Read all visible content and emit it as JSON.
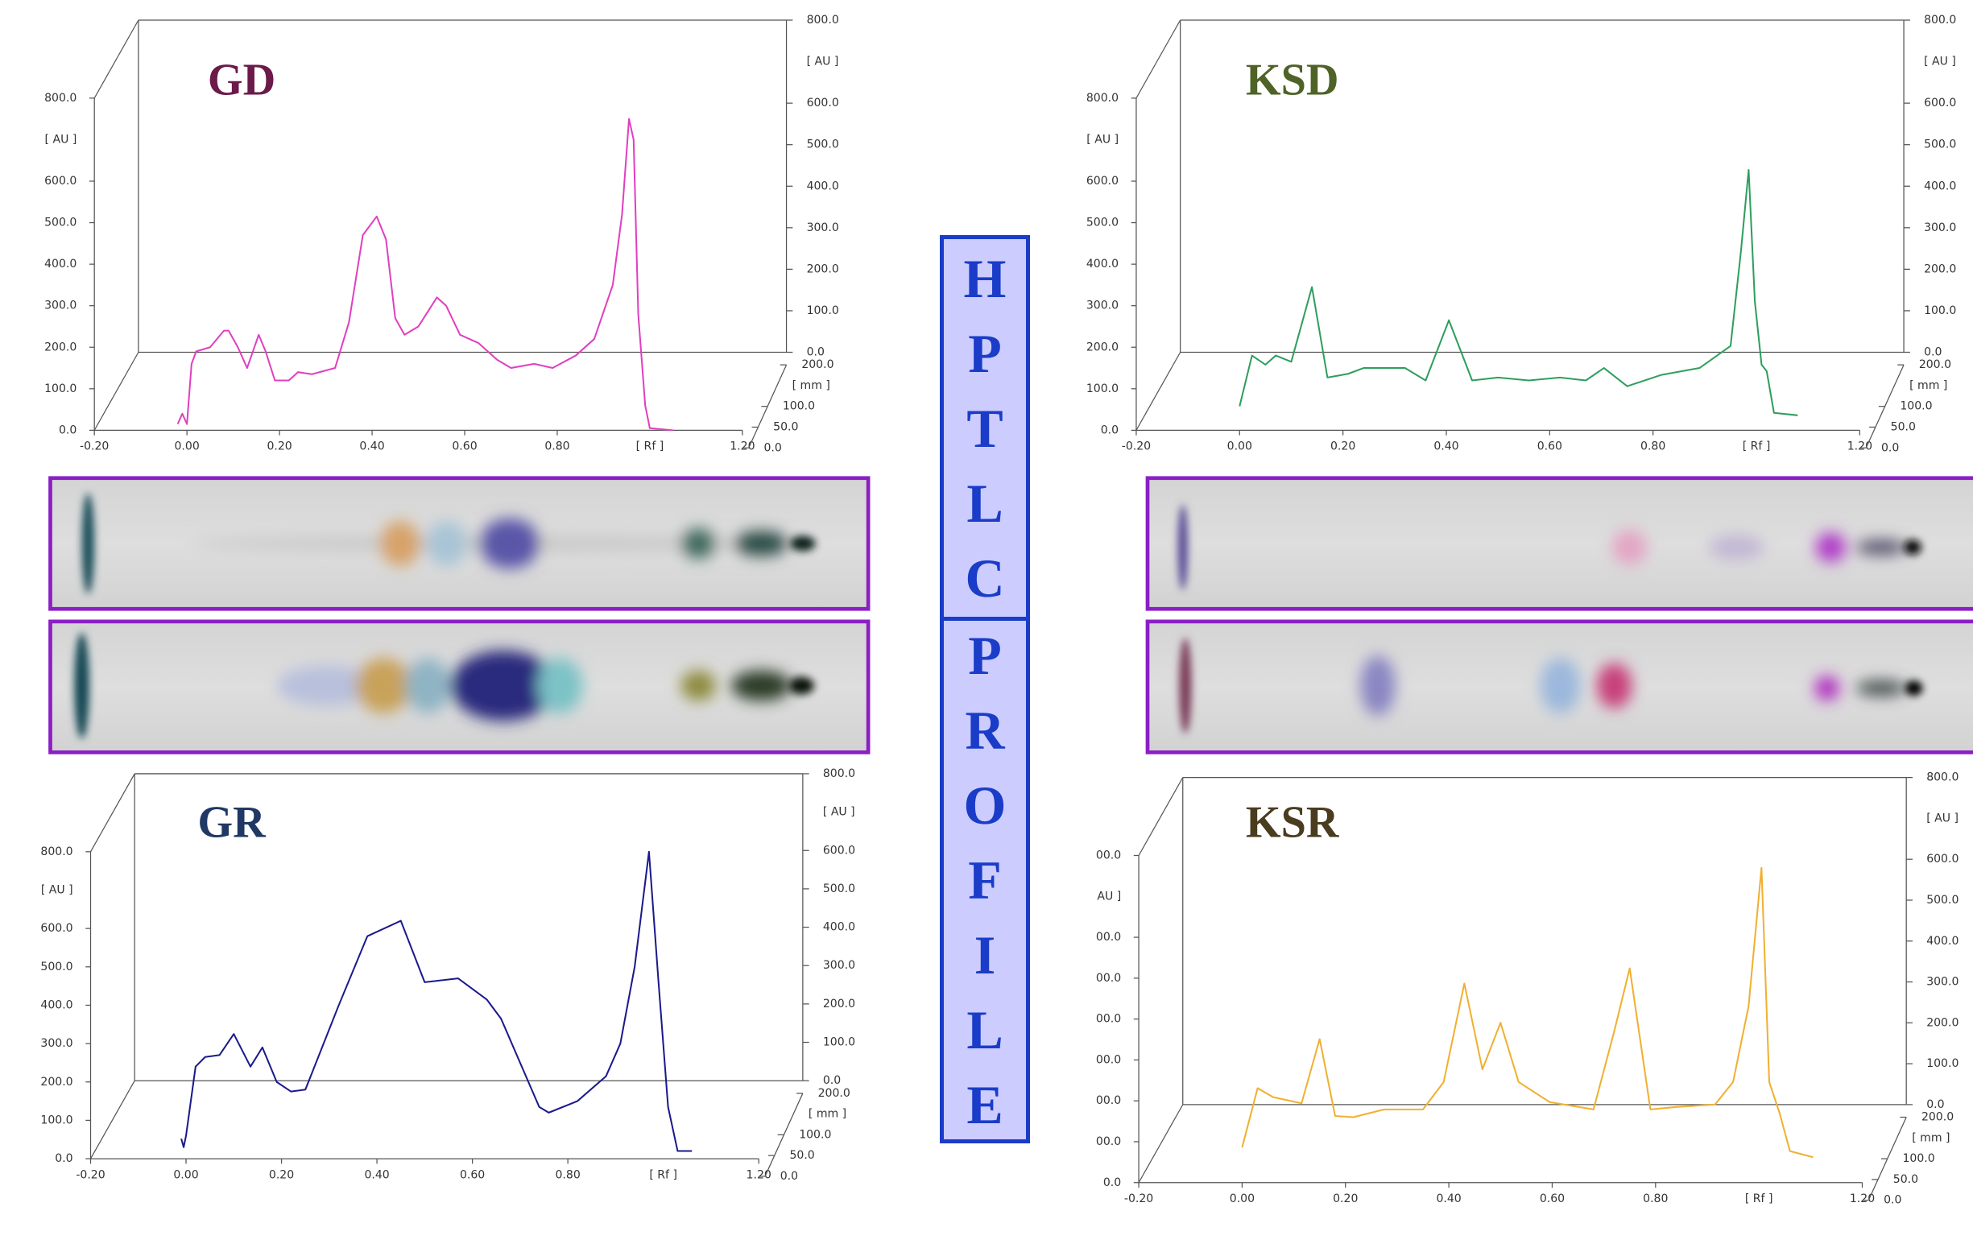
{
  "center_label": [
    "HPTLC",
    "PROFILE"
  ],
  "chart_data": [
    {
      "type": "line",
      "title": "GD",
      "title_color": "#6b1a4a",
      "color": "#e040c0",
      "x_label": "[ Rf ]",
      "y_label": "[ AU ]",
      "y2_label": "[ AU ]",
      "z_label": "[ mm ]",
      "x": [
        -0.02,
        -0.01,
        0.0,
        0.01,
        0.02,
        0.05,
        0.08,
        0.09,
        0.11,
        0.13,
        0.155,
        0.17,
        0.19,
        0.22,
        0.24,
        0.27,
        0.32,
        0.35,
        0.38,
        0.41,
        0.43,
        0.45,
        0.47,
        0.5,
        0.54,
        0.56,
        0.59,
        0.63,
        0.67,
        0.7,
        0.75,
        0.79,
        0.84,
        0.88,
        0.92,
        0.94,
        0.955,
        0.965,
        0.975,
        0.99,
        1.0,
        1.05
      ],
      "values": [
        15,
        40,
        15,
        160,
        190,
        200,
        240,
        240,
        200,
        150,
        230,
        190,
        120,
        120,
        140,
        135,
        150,
        260,
        470,
        515,
        460,
        270,
        230,
        250,
        320,
        300,
        230,
        210,
        170,
        150,
        160,
        150,
        180,
        220,
        350,
        520,
        750,
        700,
        280,
        60,
        5,
        0
      ],
      "xlim": [
        -0.2,
        1.2
      ],
      "xticks": [
        {
          "value": -0.2,
          "label": "-0.20"
        },
        {
          "value": 0,
          "label": "0.00"
        },
        {
          "value": 0.2,
          "label": "0.20"
        },
        {
          "value": 0.4,
          "label": "0.40"
        },
        {
          "value": 0.6,
          "label": "0.60"
        },
        {
          "value": 0.8,
          "label": "0.80"
        },
        {
          "value": 1.2,
          "label": "1.20"
        }
      ],
      "ylim": [
        0,
        800
      ],
      "yticks": [
        {
          "value": 0,
          "label": "0.0"
        },
        {
          "value": 100,
          "label": "100.0"
        },
        {
          "value": 200,
          "label": "200.0"
        },
        {
          "value": 300,
          "label": "300.0"
        },
        {
          "value": 400,
          "label": "400.0"
        },
        {
          "value": 500,
          "label": "500.0"
        },
        {
          "value": 600,
          "label": "600.0"
        },
        {
          "value": 800,
          "label": "800.0"
        }
      ],
      "y2lim": [
        0,
        800
      ],
      "y2ticks": [
        {
          "value": 0,
          "label": "0.0"
        },
        {
          "value": 100,
          "label": "100.0"
        },
        {
          "value": 200,
          "label": "200.0"
        },
        {
          "value": 300,
          "label": "300.0"
        },
        {
          "value": 400,
          "label": "400.0"
        },
        {
          "value": 500,
          "label": "500.0"
        },
        {
          "value": 600,
          "label": "600.0"
        },
        {
          "value": 800,
          "label": "800.0"
        }
      ],
      "zlim": [
        0,
        200
      ],
      "zticks": [
        {
          "value": 0,
          "label": "0.0"
        },
        {
          "value": 50,
          "label": "50.0"
        },
        {
          "value": 100,
          "label": "100.0"
        },
        {
          "value": 200,
          "label": "200.0"
        }
      ]
    },
    {
      "type": "line",
      "title": "GR",
      "title_color": "#1f3864",
      "color": "#1a1a8c",
      "x_label": "[ Rf ]",
      "y_label": "[ AU ]",
      "y2_label": "[ AU ]",
      "z_label": "[ mm ]",
      "x": [
        -0.01,
        -0.005,
        0.0,
        0.02,
        0.04,
        0.07,
        0.1,
        0.135,
        0.16,
        0.19,
        0.22,
        0.25,
        0.32,
        0.38,
        0.45,
        0.5,
        0.57,
        0.63,
        0.66,
        0.74,
        0.76,
        0.82,
        0.88,
        0.91,
        0.94,
        0.97,
        0.99,
        1.01,
        1.03,
        1.06
      ],
      "values": [
        52,
        30,
        60,
        240,
        265,
        270,
        325,
        240,
        290,
        200,
        175,
        180,
        400,
        580,
        620,
        460,
        470,
        415,
        365,
        135,
        120,
        150,
        215,
        300,
        500,
        800,
        460,
        135,
        20,
        20
      ],
      "xlim": [
        -0.2,
        1.2
      ],
      "xticks": [
        {
          "value": -0.2,
          "label": "-0.20"
        },
        {
          "value": 0,
          "label": "0.00"
        },
        {
          "value": 0.2,
          "label": "0.20"
        },
        {
          "value": 0.4,
          "label": "0.40"
        },
        {
          "value": 0.6,
          "label": "0.60"
        },
        {
          "value": 0.8,
          "label": "0.80"
        },
        {
          "value": 1.2,
          "label": "1.20"
        }
      ],
      "ylim": [
        0,
        800
      ],
      "yticks": [
        {
          "value": 0,
          "label": "0.0"
        },
        {
          "value": 100,
          "label": "100.0"
        },
        {
          "value": 200,
          "label": "200.0"
        },
        {
          "value": 300,
          "label": "300.0"
        },
        {
          "value": 400,
          "label": "400.0"
        },
        {
          "value": 500,
          "label": "500.0"
        },
        {
          "value": 600,
          "label": "600.0"
        },
        {
          "value": 800,
          "label": "800.0"
        }
      ],
      "y2lim": [
        0,
        800
      ],
      "y2ticks": [
        {
          "value": 0,
          "label": "0.0"
        },
        {
          "value": 100,
          "label": "100.0"
        },
        {
          "value": 200,
          "label": "200.0"
        },
        {
          "value": 300,
          "label": "300.0"
        },
        {
          "value": 400,
          "label": "400.0"
        },
        {
          "value": 500,
          "label": "500.0"
        },
        {
          "value": 600,
          "label": "600.0"
        },
        {
          "value": 800,
          "label": "800.0"
        }
      ],
      "zlim": [
        0,
        200
      ],
      "zticks": [
        {
          "value": 0,
          "label": "0.0"
        },
        {
          "value": 50,
          "label": "50.0"
        },
        {
          "value": 100,
          "label": "100.0"
        },
        {
          "value": 200,
          "label": "200.0"
        }
      ]
    },
    {
      "type": "line",
      "title": "KSD",
      "title_color": "#4f6228",
      "color": "#2e9e5e",
      "x_label": "[ Rf ]",
      "y_label": "[ AU ]",
      "y2_label": "[ AU ]",
      "z_label": "[ mm ]",
      "x": [
        0.0,
        0.024,
        0.05,
        0.07,
        0.1,
        0.14,
        0.17,
        0.21,
        0.24,
        0.28,
        0.32,
        0.36,
        0.405,
        0.45,
        0.5,
        0.56,
        0.62,
        0.67,
        0.705,
        0.75,
        0.815,
        0.89,
        0.95,
        0.97,
        0.985,
        0.997,
        1.01,
        1.02,
        1.034,
        1.08
      ],
      "values": [
        58,
        180,
        158,
        180,
        165,
        345,
        127,
        136,
        150,
        150,
        150,
        120,
        265,
        120,
        127,
        120,
        127,
        120,
        150,
        106,
        133,
        150,
        203,
        430,
        627,
        310,
        158,
        142,
        42,
        36
      ],
      "xlim": [
        -0.2,
        1.2
      ],
      "xticks": [
        {
          "value": -0.2,
          "label": "-0.20"
        },
        {
          "value": 0,
          "label": "0.00"
        },
        {
          "value": 0.2,
          "label": "0.20"
        },
        {
          "value": 0.4,
          "label": "0.40"
        },
        {
          "value": 0.6,
          "label": "0.60"
        },
        {
          "value": 0.8,
          "label": "0.80"
        },
        {
          "value": 1.2,
          "label": "1.20"
        }
      ],
      "ylim": [
        0,
        800
      ],
      "yticks": [
        {
          "value": 0,
          "label": "0.0"
        },
        {
          "value": 100,
          "label": "100.0"
        },
        {
          "value": 200,
          "label": "200.0"
        },
        {
          "value": 300,
          "label": "300.0"
        },
        {
          "value": 400,
          "label": "400.0"
        },
        {
          "value": 500,
          "label": "500.0"
        },
        {
          "value": 600,
          "label": "600.0"
        },
        {
          "value": 800,
          "label": "800.0"
        }
      ],
      "y2lim": [
        0,
        800
      ],
      "y2ticks": [
        {
          "value": 0,
          "label": "0.0"
        },
        {
          "value": 100,
          "label": "100.0"
        },
        {
          "value": 200,
          "label": "200.0"
        },
        {
          "value": 300,
          "label": "300.0"
        },
        {
          "value": 400,
          "label": "400.0"
        },
        {
          "value": 500,
          "label": "500.0"
        },
        {
          "value": 600,
          "label": "600.0"
        },
        {
          "value": 800,
          "label": "800.0"
        }
      ],
      "zlim": [
        0,
        200
      ],
      "zticks": [
        {
          "value": 0,
          "label": "0.0"
        },
        {
          "value": 50,
          "label": "50.0"
        },
        {
          "value": 100,
          "label": "100.0"
        },
        {
          "value": 200,
          "label": "200.0"
        }
      ]
    },
    {
      "type": "line",
      "title": "KSR",
      "title_color": "#4a3c1e",
      "color": "#f0b030",
      "x_label": "[ Rf ]",
      "y_label": "AU ]",
      "y2_label": "[ AU ]",
      "z_label": "[ mm ]",
      "x": [
        0.0,
        0.03,
        0.06,
        0.115,
        0.15,
        0.18,
        0.215,
        0.275,
        0.35,
        0.39,
        0.43,
        0.465,
        0.5,
        0.535,
        0.595,
        0.68,
        0.72,
        0.75,
        0.79,
        0.84,
        0.915,
        0.95,
        0.98,
        1.005,
        1.02,
        1.04,
        1.06,
        1.105
      ],
      "values": [
        86,
        231,
        209,
        194,
        351,
        163,
        160,
        179,
        179,
        246,
        487,
        277,
        391,
        246,
        197,
        179,
        370,
        524,
        179,
        185,
        191,
        246,
        431,
        770,
        246,
        170,
        77,
        62
      ],
      "xlim": [
        -0.2,
        1.2
      ],
      "xticks": [
        {
          "value": -0.2,
          "label": "-0.20"
        },
        {
          "value": 0,
          "label": "0.00"
        },
        {
          "value": 0.2,
          "label": "0.20"
        },
        {
          "value": 0.4,
          "label": "0.40"
        },
        {
          "value": 0.6,
          "label": "0.60"
        },
        {
          "value": 0.8,
          "label": "0.80"
        },
        {
          "value": 1.2,
          "label": "1.20"
        }
      ],
      "ylim": [
        0,
        800
      ],
      "yticks": [
        {
          "value": 0,
          "label": "0.0"
        },
        {
          "value": 100,
          "label": "00.0"
        },
        {
          "value": 200,
          "label": "00.0"
        },
        {
          "value": 300,
          "label": "00.0"
        },
        {
          "value": 400,
          "label": "00.0"
        },
        {
          "value": 500,
          "label": "00.0"
        },
        {
          "value": 600,
          "label": "00.0"
        },
        {
          "value": 800,
          "label": "00.0"
        }
      ],
      "y2lim": [
        0,
        800
      ],
      "y2ticks": [
        {
          "value": 0,
          "label": "0.0"
        },
        {
          "value": 100,
          "label": "100.0"
        },
        {
          "value": 200,
          "label": "200.0"
        },
        {
          "value": 300,
          "label": "300.0"
        },
        {
          "value": 400,
          "label": "400.0"
        },
        {
          "value": 500,
          "label": "500.0"
        },
        {
          "value": 600,
          "label": "600.0"
        },
        {
          "value": 800,
          "label": "800.0"
        }
      ],
      "zlim": [
        0,
        200
      ],
      "zticks": [
        {
          "value": 0,
          "label": "0.0"
        },
        {
          "value": 50,
          "label": "50.0"
        },
        {
          "value": 100,
          "label": "100.0"
        },
        {
          "value": 200,
          "label": "200.0"
        }
      ]
    }
  ]
}
